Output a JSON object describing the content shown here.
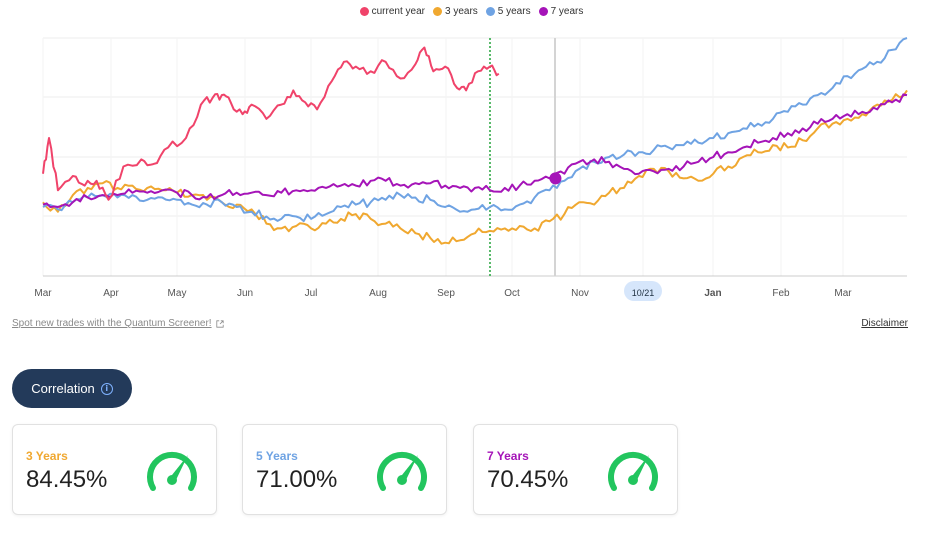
{
  "legend": [
    {
      "label": "current year",
      "color": "#f0436a"
    },
    {
      "label": "3 years",
      "color": "#f0a830"
    },
    {
      "label": "5 years",
      "color": "#6fa3e3"
    },
    {
      "label": "7 years",
      "color": "#a514b8"
    }
  ],
  "chart_data": {
    "type": "line",
    "x_ticks": [
      "Mar",
      "Apr",
      "May",
      "Jun",
      "Jul",
      "Aug",
      "Sep",
      "Oct",
      "Nov",
      "10/21",
      "Jan",
      "Feb",
      "Mar"
    ],
    "highlighted_tick": "10/21",
    "bold_tick": "Jan",
    "y_axis_labels": "none",
    "grid": true,
    "legend_position": "top-center",
    "vertical_markers": [
      {
        "style": "dotted",
        "color": "#22a33a",
        "at": "late Sep"
      },
      {
        "style": "solid",
        "color": "#d4d4d4",
        "at": "late Oct (today)"
      }
    ],
    "series": [
      {
        "name": "current year",
        "color": "#f0436a",
        "points": [
          [
            0,
            0.43
          ],
          [
            2,
            0.58
          ],
          [
            5,
            0.36
          ],
          [
            10,
            0.42
          ],
          [
            14,
            0.38
          ],
          [
            18,
            0.4
          ],
          [
            22,
            0.32
          ],
          [
            27,
            0.46
          ],
          [
            33,
            0.49
          ],
          [
            37,
            0.47
          ],
          [
            42,
            0.54
          ],
          [
            48,
            0.58
          ],
          [
            53,
            0.72
          ],
          [
            57,
            0.75
          ],
          [
            60,
            0.76
          ],
          [
            63,
            0.73
          ],
          [
            67,
            0.68
          ],
          [
            70,
            0.72
          ],
          [
            75,
            0.66
          ],
          [
            80,
            0.72
          ],
          [
            84,
            0.78
          ],
          [
            88,
            0.73
          ],
          [
            92,
            0.7
          ],
          [
            97,
            0.82
          ],
          [
            101,
            0.9
          ],
          [
            105,
            0.88
          ],
          [
            110,
            0.86
          ],
          [
            115,
            0.9
          ],
          [
            120,
            0.83
          ],
          [
            125,
            0.89
          ],
          [
            128,
            0.96
          ],
          [
            131,
            0.86
          ],
          [
            135,
            0.88
          ],
          [
            139,
            0.79
          ],
          [
            142,
            0.78
          ],
          [
            146,
            0.86
          ],
          [
            150,
            0.88
          ],
          [
            153,
            0.85
          ]
        ]
      },
      {
        "name": "3 years",
        "color": "#f0a830",
        "points": [
          [
            0,
            0.31
          ],
          [
            5,
            0.27
          ],
          [
            10,
            0.34
          ],
          [
            15,
            0.37
          ],
          [
            20,
            0.39
          ],
          [
            25,
            0.37
          ],
          [
            30,
            0.38
          ],
          [
            35,
            0.37
          ],
          [
            40,
            0.36
          ],
          [
            45,
            0.35
          ],
          [
            50,
            0.34
          ],
          [
            55,
            0.32
          ],
          [
            60,
            0.31
          ],
          [
            65,
            0.3
          ],
          [
            70,
            0.28
          ],
          [
            75,
            0.22
          ],
          [
            80,
            0.2
          ],
          [
            85,
            0.21
          ],
          [
            90,
            0.2
          ],
          [
            95,
            0.22
          ],
          [
            100,
            0.24
          ],
          [
            105,
            0.26
          ],
          [
            110,
            0.24
          ],
          [
            115,
            0.22
          ],
          [
            120,
            0.2
          ],
          [
            125,
            0.18
          ],
          [
            130,
            0.16
          ],
          [
            135,
            0.14
          ],
          [
            140,
            0.15
          ],
          [
            145,
            0.18
          ],
          [
            150,
            0.19
          ],
          [
            155,
            0.2
          ],
          [
            160,
            0.21
          ],
          [
            165,
            0.2
          ],
          [
            170,
            0.23
          ],
          [
            175,
            0.26
          ],
          [
            180,
            0.31
          ],
          [
            185,
            0.3
          ],
          [
            190,
            0.35
          ],
          [
            195,
            0.37
          ],
          [
            200,
            0.42
          ],
          [
            205,
            0.45
          ],
          [
            210,
            0.44
          ],
          [
            215,
            0.41
          ],
          [
            220,
            0.4
          ],
          [
            225,
            0.43
          ],
          [
            230,
            0.46
          ],
          [
            235,
            0.5
          ],
          [
            240,
            0.52
          ],
          [
            245,
            0.55
          ],
          [
            250,
            0.54
          ],
          [
            255,
            0.57
          ],
          [
            260,
            0.62
          ],
          [
            265,
            0.64
          ],
          [
            270,
            0.66
          ],
          [
            275,
            0.68
          ],
          [
            280,
            0.72
          ],
          [
            285,
            0.74
          ],
          [
            290,
            0.78
          ]
        ]
      },
      {
        "name": "5 years",
        "color": "#6fa3e3",
        "points": [
          [
            0,
            0.29
          ],
          [
            5,
            0.28
          ],
          [
            10,
            0.31
          ],
          [
            15,
            0.33
          ],
          [
            20,
            0.34
          ],
          [
            25,
            0.33
          ],
          [
            30,
            0.34
          ],
          [
            35,
            0.32
          ],
          [
            40,
            0.33
          ],
          [
            45,
            0.32
          ],
          [
            50,
            0.3
          ],
          [
            55,
            0.3
          ],
          [
            60,
            0.31
          ],
          [
            65,
            0.29
          ],
          [
            70,
            0.27
          ],
          [
            75,
            0.25
          ],
          [
            80,
            0.24
          ],
          [
            85,
            0.25
          ],
          [
            90,
            0.24
          ],
          [
            95,
            0.26
          ],
          [
            100,
            0.29
          ],
          [
            105,
            0.3
          ],
          [
            110,
            0.31
          ],
          [
            115,
            0.32
          ],
          [
            120,
            0.34
          ],
          [
            125,
            0.33
          ],
          [
            130,
            0.32
          ],
          [
            135,
            0.29
          ],
          [
            140,
            0.27
          ],
          [
            145,
            0.28
          ],
          [
            150,
            0.29
          ],
          [
            155,
            0.28
          ],
          [
            160,
            0.3
          ],
          [
            165,
            0.33
          ],
          [
            170,
            0.36
          ],
          [
            175,
            0.4
          ],
          [
            180,
            0.45
          ],
          [
            185,
            0.48
          ],
          [
            190,
            0.5
          ],
          [
            195,
            0.51
          ],
          [
            200,
            0.52
          ],
          [
            205,
            0.53
          ],
          [
            210,
            0.54
          ],
          [
            215,
            0.55
          ],
          [
            220,
            0.56
          ],
          [
            225,
            0.58
          ],
          [
            230,
            0.6
          ],
          [
            235,
            0.62
          ],
          [
            240,
            0.64
          ],
          [
            245,
            0.66
          ],
          [
            250,
            0.69
          ],
          [
            255,
            0.72
          ],
          [
            260,
            0.76
          ],
          [
            265,
            0.79
          ],
          [
            270,
            0.84
          ],
          [
            275,
            0.87
          ],
          [
            280,
            0.9
          ],
          [
            285,
            0.95
          ],
          [
            290,
            1.0
          ]
        ]
      },
      {
        "name": "7 years",
        "color": "#a514b8",
        "points": [
          [
            0,
            0.3
          ],
          [
            5,
            0.29
          ],
          [
            10,
            0.31
          ],
          [
            15,
            0.33
          ],
          [
            20,
            0.34
          ],
          [
            25,
            0.34
          ],
          [
            30,
            0.35
          ],
          [
            35,
            0.35
          ],
          [
            40,
            0.36
          ],
          [
            45,
            0.35
          ],
          [
            50,
            0.34
          ],
          [
            55,
            0.33
          ],
          [
            60,
            0.34
          ],
          [
            65,
            0.35
          ],
          [
            70,
            0.35
          ],
          [
            75,
            0.34
          ],
          [
            80,
            0.35
          ],
          [
            85,
            0.36
          ],
          [
            90,
            0.36
          ],
          [
            95,
            0.37
          ],
          [
            100,
            0.38
          ],
          [
            105,
            0.38
          ],
          [
            110,
            0.4
          ],
          [
            115,
            0.4
          ],
          [
            120,
            0.38
          ],
          [
            125,
            0.39
          ],
          [
            130,
            0.39
          ],
          [
            135,
            0.38
          ],
          [
            140,
            0.37
          ],
          [
            145,
            0.37
          ],
          [
            150,
            0.36
          ],
          [
            155,
            0.37
          ],
          [
            160,
            0.38
          ],
          [
            165,
            0.4
          ],
          [
            170,
            0.41
          ],
          [
            175,
            0.43
          ],
          [
            180,
            0.48
          ],
          [
            185,
            0.49
          ],
          [
            190,
            0.48
          ],
          [
            195,
            0.45
          ],
          [
            200,
            0.43
          ],
          [
            205,
            0.44
          ],
          [
            210,
            0.45
          ],
          [
            215,
            0.46
          ],
          [
            220,
            0.48
          ],
          [
            225,
            0.5
          ],
          [
            230,
            0.52
          ],
          [
            235,
            0.54
          ],
          [
            240,
            0.56
          ],
          [
            245,
            0.58
          ],
          [
            250,
            0.6
          ],
          [
            255,
            0.62
          ],
          [
            260,
            0.64
          ],
          [
            265,
            0.66
          ],
          [
            270,
            0.68
          ],
          [
            275,
            0.69
          ],
          [
            280,
            0.7
          ],
          [
            285,
            0.73
          ],
          [
            290,
            0.76
          ]
        ]
      }
    ],
    "x_domain": [
      0,
      290
    ],
    "y_domain": [
      0,
      1
    ],
    "marker_point": {
      "series": "7 years",
      "x": 172,
      "y": 0.41
    }
  },
  "links": {
    "screener": "Spot new trades with the Quantum Screener!",
    "disclaimer": "Disclaimer"
  },
  "correlation": {
    "button_label": "Correlation",
    "cards": [
      {
        "label": "3 Years",
        "value": "84.45%",
        "color": "#f0a830"
      },
      {
        "label": "5 Years",
        "value": "71.00%",
        "color": "#6fa3e3"
      },
      {
        "label": "7 Years",
        "value": "70.45%",
        "color": "#a514b8"
      }
    ],
    "gauge_color": "#22c55e"
  }
}
